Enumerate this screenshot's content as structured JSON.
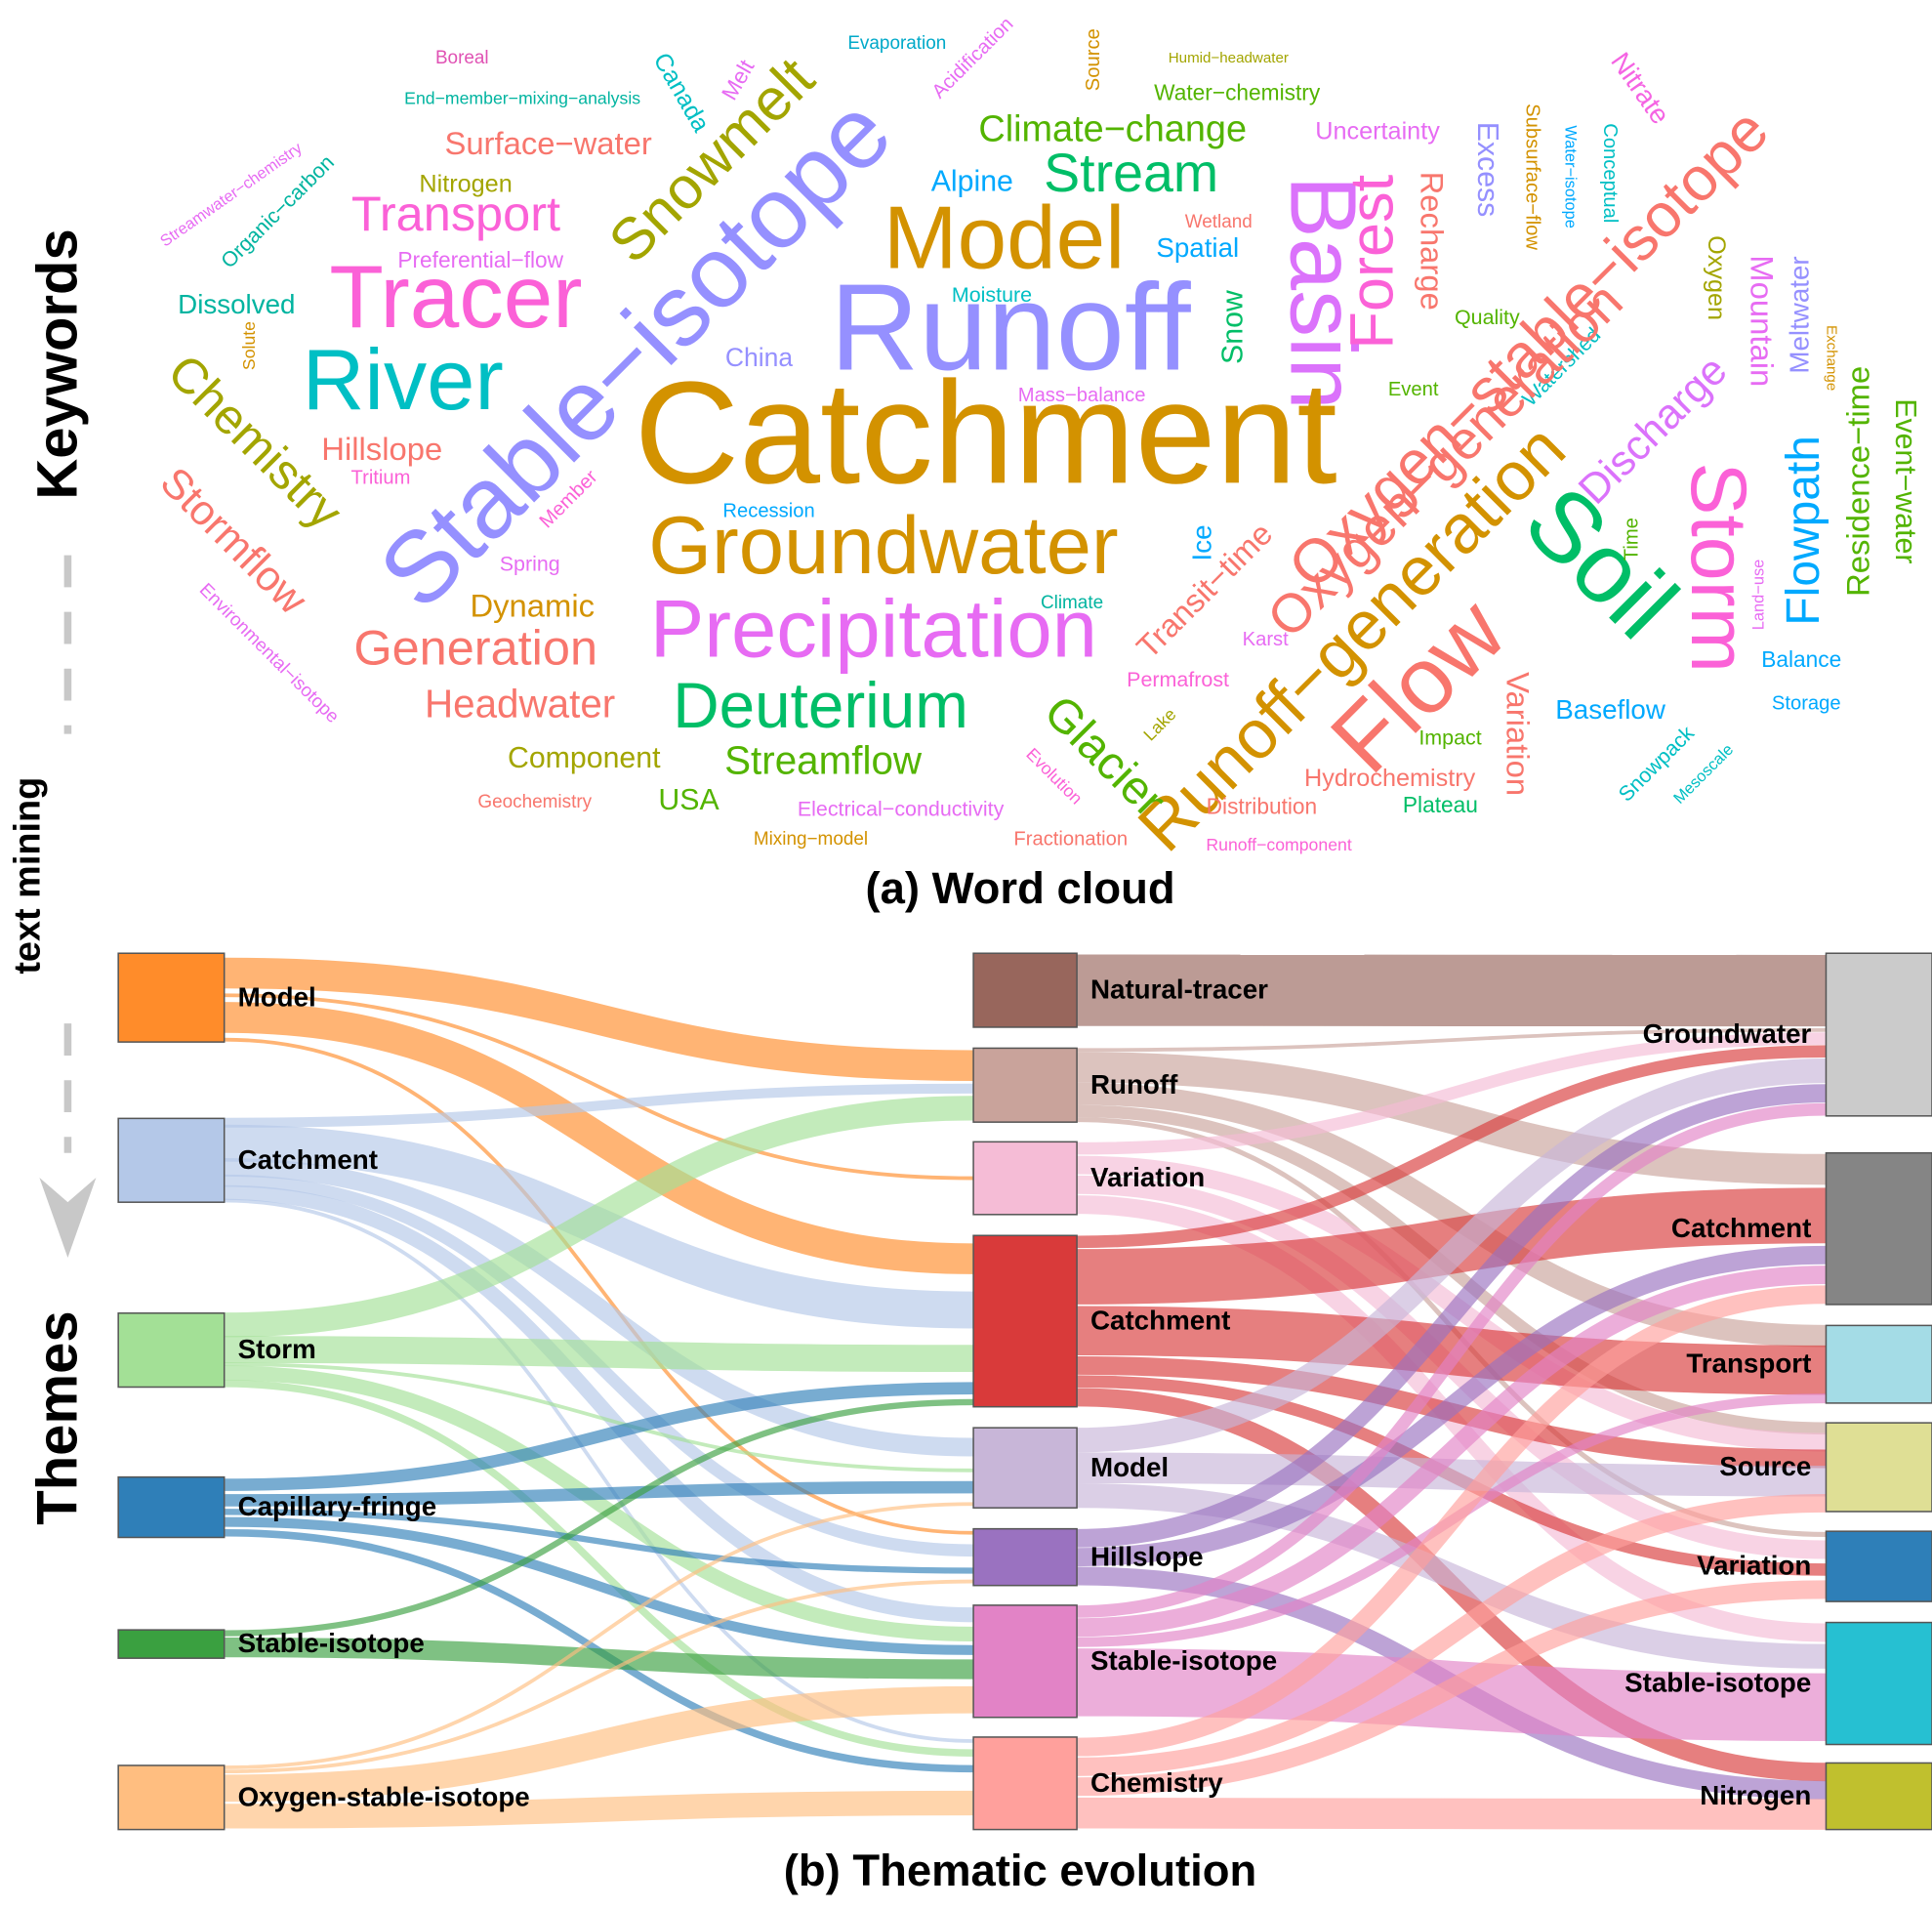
{
  "side_labels": {
    "top": "Keywords",
    "middle": "text mining",
    "bottom": "Themes"
  },
  "word_cloud": {
    "caption": "(a) Word cloud",
    "words": [
      {
        "text": "Boreal",
        "color": "#e052b4"
      },
      {
        "text": "Evaporation",
        "color": "#00a9c9"
      },
      {
        "text": "Acidification",
        "color": "#e76bf3"
      },
      {
        "text": "Source",
        "color": "#d39200"
      },
      {
        "text": "Humid−headwater",
        "color": "#a3a500"
      },
      {
        "text": "Nitrate",
        "color": "#f564e3"
      },
      {
        "text": "Canada",
        "color": "#00bfc4"
      },
      {
        "text": "Melt",
        "color": "#e76bf3"
      },
      {
        "text": "End−member−mixing−analysis",
        "color": "#00b4a0"
      },
      {
        "text": "Water−chemistry",
        "color": "#53b400"
      },
      {
        "text": "Snowmelt",
        "color": "#a3a500"
      },
      {
        "text": "Surface−water",
        "color": "#f8766d"
      },
      {
        "text": "Climate−change",
        "color": "#53b400"
      },
      {
        "text": "Uncertainty",
        "color": "#e76bf3"
      },
      {
        "text": "Excess",
        "color": "#9590ff"
      },
      {
        "text": "Subsurface−flow",
        "color": "#d39200"
      },
      {
        "text": "Water−isotope",
        "color": "#00a9ff"
      },
      {
        "text": "Conceptual",
        "color": "#00bfc4"
      },
      {
        "text": "Streamwater−chemistry",
        "color": "#e76bf3"
      },
      {
        "text": "Organic−carbon",
        "color": "#00b4a0"
      },
      {
        "text": "Nitrogen",
        "color": "#a3a500"
      },
      {
        "text": "Alpine",
        "color": "#00a9ff"
      },
      {
        "text": "Stream",
        "color": "#00be67"
      },
      {
        "text": "Recharge",
        "color": "#f8766d"
      },
      {
        "text": "Oxygen−stable−isotope",
        "color": "#f8766d"
      },
      {
        "text": "Transport",
        "color": "#fb61d7"
      },
      {
        "text": "Model",
        "color": "#d39200"
      },
      {
        "text": "Basin",
        "color": "#db72fb"
      },
      {
        "text": "Forest",
        "color": "#fb61d7"
      },
      {
        "text": "Wetland",
        "color": "#f8766d"
      },
      {
        "text": "Spatial",
        "color": "#00a9ff"
      },
      {
        "text": "Oxygen",
        "color": "#a3a500"
      },
      {
        "text": "Mountain",
        "color": "#e76bf3"
      },
      {
        "text": "Meltwater",
        "color": "#9590ff"
      },
      {
        "text": "Exchange",
        "color": "#d39200"
      },
      {
        "text": "Preferential−flow",
        "color": "#e76bf3"
      },
      {
        "text": "Tracer",
        "color": "#fb61d7"
      },
      {
        "text": "Dissolved",
        "color": "#00b4a0"
      },
      {
        "text": "Stable−isotope",
        "color": "#9590ff"
      },
      {
        "text": "Moisture",
        "color": "#00bfc4"
      },
      {
        "text": "Runoff",
        "color": "#9590ff"
      },
      {
        "text": "Snow",
        "color": "#00be67"
      },
      {
        "text": "Quality",
        "color": "#53b400"
      },
      {
        "text": "Watershed",
        "color": "#00bfc4"
      },
      {
        "text": "Solute",
        "color": "#d39200"
      },
      {
        "text": "Chemistry",
        "color": "#a3a500"
      },
      {
        "text": "River",
        "color": "#00bfc4"
      },
      {
        "text": "China",
        "color": "#9590ff"
      },
      {
        "text": "Mass−balance",
        "color": "#e76bf3"
      },
      {
        "text": "Event",
        "color": "#53b400"
      },
      {
        "text": "Residence−time",
        "color": "#53b400"
      },
      {
        "text": "Event−water",
        "color": "#53b400"
      },
      {
        "text": "Catchment",
        "color": "#d39200"
      },
      {
        "text": "Hillslope",
        "color": "#f8766d"
      },
      {
        "text": "Tritium",
        "color": "#fb61d7"
      },
      {
        "text": "Member",
        "color": "#fb61d7"
      },
      {
        "text": "Discharge",
        "color": "#db72fb"
      },
      {
        "text": "Flowpath",
        "color": "#00a9ff"
      },
      {
        "text": "Storm",
        "color": "#fb61d7"
      },
      {
        "text": "Stormflow",
        "color": "#f8766d"
      },
      {
        "text": "Recession",
        "color": "#00a9ff"
      },
      {
        "text": "Groundwater",
        "color": "#d39200"
      },
      {
        "text": "Ice",
        "color": "#00a9ff"
      },
      {
        "text": "Oxygen−generation",
        "color": "#f8766d"
      },
      {
        "text": "Soil",
        "color": "#00be67"
      },
      {
        "text": "Time",
        "color": "#53b400"
      },
      {
        "text": "Spring",
        "color": "#e76bf3"
      },
      {
        "text": "Transit−time",
        "color": "#f8766d"
      },
      {
        "text": "Environmental−isotope",
        "color": "#e76bf3"
      },
      {
        "text": "Land−use",
        "color": "#e76bf3"
      },
      {
        "text": "Dynamic",
        "color": "#d39200"
      },
      {
        "text": "Climate",
        "color": "#00b4a0"
      },
      {
        "text": "Precipitation",
        "color": "#e76bf3"
      },
      {
        "text": "Generation",
        "color": "#f8766d"
      },
      {
        "text": "Runoff−generation",
        "color": "#d39200"
      },
      {
        "text": "Flow",
        "color": "#f8766d"
      },
      {
        "text": "Karst",
        "color": "#e76bf3"
      },
      {
        "text": "Balance",
        "color": "#00a9ff"
      },
      {
        "text": "Permafrost",
        "color": "#fb61d7"
      },
      {
        "text": "Variation",
        "color": "#f8766d"
      },
      {
        "text": "Headwater",
        "color": "#f8766d"
      },
      {
        "text": "Deuterium",
        "color": "#00be67"
      },
      {
        "text": "Baseflow",
        "color": "#00a9ff"
      },
      {
        "text": "Storage",
        "color": "#00a9ff"
      },
      {
        "text": "Glacier",
        "color": "#53b400"
      },
      {
        "text": "Lake",
        "color": "#a3a500"
      },
      {
        "text": "Impact",
        "color": "#53b400"
      },
      {
        "text": "Snowpack",
        "color": "#00bfc4"
      },
      {
        "text": "Mesoscale",
        "color": "#00bfc4"
      },
      {
        "text": "Component",
        "color": "#a3a500"
      },
      {
        "text": "Streamflow",
        "color": "#53b400"
      },
      {
        "text": "Evolution",
        "color": "#fb61d7"
      },
      {
        "text": "Hydrochemistry",
        "color": "#f8766d"
      },
      {
        "text": "Geochemistry",
        "color": "#f8766d"
      },
      {
        "text": "USA",
        "color": "#53b400"
      },
      {
        "text": "Electrical−conductivity",
        "color": "#e76bf3"
      },
      {
        "text": "Distribution",
        "color": "#f8766d"
      },
      {
        "text": "Plateau",
        "color": "#00be67"
      },
      {
        "text": "Mixing−model",
        "color": "#d39200"
      },
      {
        "text": "Fractionation",
        "color": "#f8766d"
      },
      {
        "text": "Runoff−component",
        "color": "#fb61d7"
      }
    ]
  },
  "sankey": {
    "caption": "(b) Thematic evolution",
    "columns": [
      {
        "nodes": [
          {
            "label": "Model",
            "color": "#ff8c2a"
          },
          {
            "label": "Catchment",
            "color": "#b4c8e8"
          },
          {
            "label": "Storm",
            "color": "#a3e096"
          },
          {
            "label": "Capillary-fringe",
            "color": "#2f7fb8"
          },
          {
            "label": "Stable-isotope",
            "color": "#3aa040"
          },
          {
            "label": "Oxygen-stable-isotope",
            "color": "#ffbe80"
          }
        ]
      },
      {
        "nodes": [
          {
            "label": "Natural-tracer",
            "color": "#98665c"
          },
          {
            "label": "Runoff",
            "color": "#c9a39b"
          },
          {
            "label": "Variation",
            "color": "#f5bcd6"
          },
          {
            "label": "Catchment",
            "color": "#d93a3a"
          },
          {
            "label": "Model",
            "color": "#c8b6d8"
          },
          {
            "label": "Hillslope",
            "color": "#9a72c0"
          },
          {
            "label": "Stable-isotope",
            "color": "#e283c6"
          },
          {
            "label": "Chemistry",
            "color": "#ffa09c"
          }
        ]
      },
      {
        "nodes": [
          {
            "label": "Groundwater",
            "color": "#cbcbcb"
          },
          {
            "label": "Catchment",
            "color": "#858585"
          },
          {
            "label": "Transport",
            "color": "#a4dce6"
          },
          {
            "label": "Source",
            "color": "#dfdf95"
          },
          {
            "label": "Variation",
            "color": "#2e7fb8"
          },
          {
            "label": "Stable-isotope",
            "color": "#26c0d2"
          },
          {
            "label": "Nitrogen",
            "color": "#c0c02e"
          }
        ]
      }
    ],
    "links": [
      [
        {
          "source": 0,
          "target": 1,
          "value": 25
        },
        {
          "source": 0,
          "target": 2,
          "value": 3
        },
        {
          "source": 0,
          "target": 3,
          "value": 25
        },
        {
          "source": 0,
          "target": 5,
          "value": 3
        },
        {
          "source": 1,
          "target": 1,
          "value": 8
        },
        {
          "source": 1,
          "target": 3,
          "value": 30
        },
        {
          "source": 1,
          "target": 4,
          "value": 15
        },
        {
          "source": 1,
          "target": 5,
          "value": 10
        },
        {
          "source": 1,
          "target": 6,
          "value": 12
        },
        {
          "source": 1,
          "target": 7,
          "value": 3
        },
        {
          "source": 2,
          "target": 1,
          "value": 20
        },
        {
          "source": 2,
          "target": 3,
          "value": 22
        },
        {
          "source": 2,
          "target": 4,
          "value": 3
        },
        {
          "source": 2,
          "target": 6,
          "value": 12
        },
        {
          "source": 2,
          "target": 7,
          "value": 6
        },
        {
          "source": 3,
          "target": 3,
          "value": 10
        },
        {
          "source": 3,
          "target": 4,
          "value": 10
        },
        {
          "source": 3,
          "target": 5,
          "value": 5
        },
        {
          "source": 3,
          "target": 6,
          "value": 8
        },
        {
          "source": 3,
          "target": 7,
          "value": 6
        },
        {
          "source": 4,
          "target": 3,
          "value": 5
        },
        {
          "source": 4,
          "target": 6,
          "value": 16
        },
        {
          "source": 5,
          "target": 4,
          "value": 3
        },
        {
          "source": 5,
          "target": 5,
          "value": 3
        },
        {
          "source": 5,
          "target": 6,
          "value": 22
        },
        {
          "source": 5,
          "target": 7,
          "value": 20
        }
      ],
      [
        {
          "source": 0,
          "target": 0,
          "value": 58
        },
        {
          "source": 1,
          "target": 0,
          "value": 3
        },
        {
          "source": 1,
          "target": 1,
          "value": 25
        },
        {
          "source": 1,
          "target": 2,
          "value": 18
        },
        {
          "source": 1,
          "target": 3,
          "value": 10
        },
        {
          "source": 1,
          "target": 4,
          "value": 4
        },
        {
          "source": 2,
          "target": 0,
          "value": 10
        },
        {
          "source": 2,
          "target": 3,
          "value": 15
        },
        {
          "source": 2,
          "target": 4,
          "value": 15
        },
        {
          "source": 2,
          "target": 5,
          "value": 15
        },
        {
          "source": 3,
          "target": 0,
          "value": 10
        },
        {
          "source": 3,
          "target": 1,
          "value": 45
        },
        {
          "source": 3,
          "target": 2,
          "value": 40
        },
        {
          "source": 3,
          "target": 3,
          "value": 15
        },
        {
          "source": 3,
          "target": 4,
          "value": 10
        },
        {
          "source": 3,
          "target": 6,
          "value": 15
        },
        {
          "source": 4,
          "target": 0,
          "value": 20
        },
        {
          "source": 4,
          "target": 3,
          "value": 25
        },
        {
          "source": 4,
          "target": 5,
          "value": 20
        },
        {
          "source": 5,
          "target": 0,
          "value": 15
        },
        {
          "source": 5,
          "target": 1,
          "value": 15
        },
        {
          "source": 5,
          "target": 6,
          "value": 15
        },
        {
          "source": 6,
          "target": 0,
          "value": 10
        },
        {
          "source": 6,
          "target": 1,
          "value": 15
        },
        {
          "source": 6,
          "target": 2,
          "value": 8
        },
        {
          "source": 6,
          "target": 5,
          "value": 55
        },
        {
          "source": 7,
          "target": 1,
          "value": 15
        },
        {
          "source": 7,
          "target": 3,
          "value": 15
        },
        {
          "source": 7,
          "target": 4,
          "value": 15
        },
        {
          "source": 7,
          "target": 6,
          "value": 25
        }
      ]
    ]
  }
}
